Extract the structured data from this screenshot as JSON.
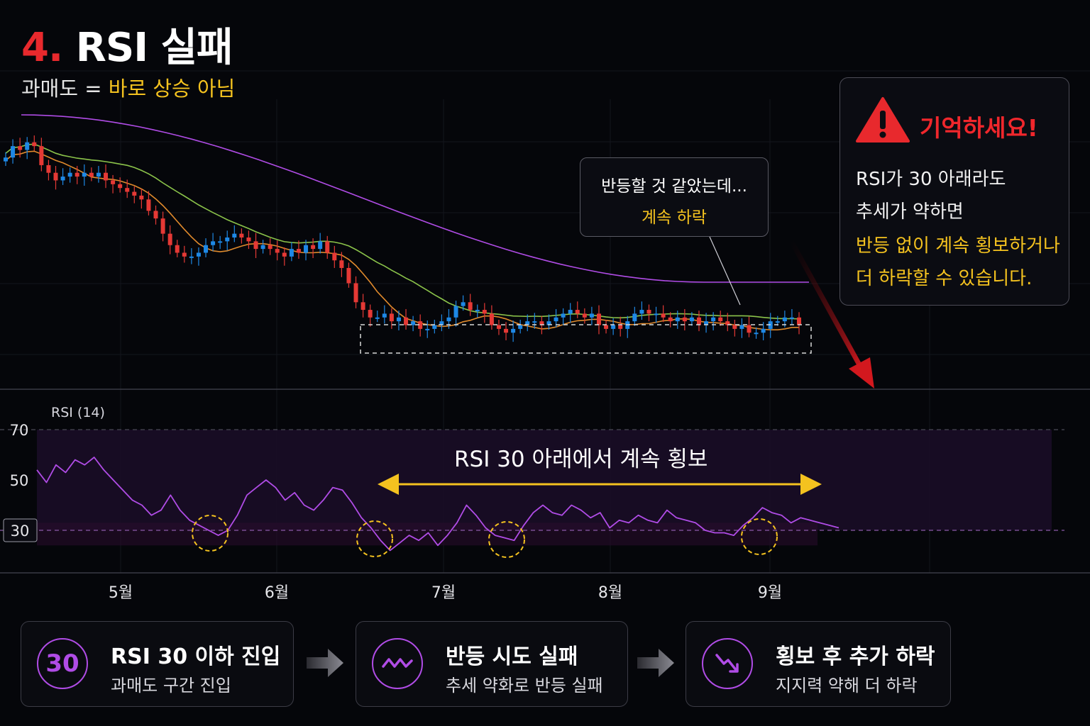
{
  "header": {
    "title_num": "4.",
    "title_text": "RSI 실패",
    "subtitle_a": "과매도 =",
    "subtitle_b": "바로 상승 아님"
  },
  "callout": {
    "line1": "반등할 것 같았는데...",
    "line2": "계속 하락"
  },
  "memo": {
    "heading": "기억하세요!",
    "lines": [
      "RSI가 30 아래라도",
      "추세가 약하면",
      "반등 없이 계속 횡보하거나",
      "더 하락할 수 있습니다."
    ],
    "icon": "warning-icon"
  },
  "rsi_panel": {
    "label": "RSI (14)",
    "annotation": "RSI 30 아래에서 계속 횡보",
    "ticks": [
      "70",
      "50",
      "30"
    ]
  },
  "steps": [
    {
      "badge": "30",
      "title": "RSI 30 이하 진입",
      "desc": "과매도 구간 진입",
      "icon": ""
    },
    {
      "badge": "",
      "title": "반등 시도 실패",
      "desc": "추세 약화로 반등 실패",
      "icon": "zigzag-icon"
    },
    {
      "badge": "",
      "title": "횡보 후 추가 하락",
      "desc": "지지력 약해 더 하락",
      "icon": "trend-down-icon"
    }
  ],
  "colors": {
    "bull": "#1e88e5",
    "bear": "#e53935",
    "accent_yellow": "#f4c21f",
    "accent_red": "#e8292d",
    "rsi_line": "#b04ce6",
    "ma_short": "#e08a2c",
    "ma_mid": "#8bc34a",
    "ma_long": "#b04ce6"
  },
  "chart_data": [
    {
      "type": "candlestick",
      "title": "",
      "x_ticks": [
        "5월",
        "6월",
        "7월",
        "8월",
        "9월"
      ],
      "moving_averages": [
        "short (orange)",
        "mid (green)",
        "long (purple)"
      ],
      "closes": [
        100,
        103,
        102,
        104,
        103,
        98,
        96,
        94,
        95,
        96,
        95,
        96,
        95,
        96,
        94,
        93,
        92,
        91,
        90,
        89,
        86,
        84,
        80,
        77,
        75,
        74,
        74,
        75,
        77,
        78,
        78,
        79,
        80,
        79,
        78,
        76,
        77,
        76,
        75,
        74,
        76,
        75,
        77,
        76,
        78,
        75,
        73,
        71,
        67,
        62,
        60,
        58,
        58,
        59,
        57,
        58,
        56,
        57,
        55,
        55,
        56,
        57,
        58,
        61,
        62,
        60,
        60,
        59,
        56,
        55,
        54,
        55,
        56,
        57,
        57,
        56,
        57,
        58,
        59,
        60,
        59,
        58,
        59,
        56,
        55,
        56,
        55,
        57,
        59,
        60,
        59,
        59,
        58,
        57,
        58,
        57,
        58,
        56,
        57,
        58,
        57,
        56,
        55,
        56,
        54,
        54,
        55,
        57,
        57,
        58,
        58,
        56
      ],
      "highlight_range": "July–September sideways zone"
    },
    {
      "type": "line",
      "title": "RSI (14)",
      "ylim": [
        0,
        70
      ],
      "reference_lines": [
        70,
        30
      ],
      "y_ticks": [
        70,
        50,
        30
      ],
      "x_ticks": [
        "5월",
        "6월",
        "7월",
        "8월",
        "9월"
      ],
      "values": [
        54,
        49,
        56,
        53,
        58,
        56,
        59,
        54,
        50,
        46,
        42,
        40,
        36,
        38,
        44,
        38,
        34,
        32,
        30,
        28,
        30,
        36,
        44,
        47,
        50,
        47,
        42,
        45,
        40,
        38,
        42,
        47,
        46,
        41,
        35,
        31,
        26,
        22,
        25,
        28,
        26,
        29,
        24,
        28,
        33,
        40,
        36,
        31,
        28,
        27,
        26,
        32,
        37,
        40,
        37,
        36,
        40,
        38,
        35,
        37,
        31,
        34,
        33,
        36,
        34,
        33,
        38,
        35,
        34,
        33,
        30,
        29,
        29,
        28,
        32,
        35,
        39,
        37,
        36,
        33,
        35,
        34,
        33,
        32,
        31
      ],
      "oversold_touches": [
        "late May",
        "mid June",
        "early July",
        "early September"
      ]
    }
  ]
}
